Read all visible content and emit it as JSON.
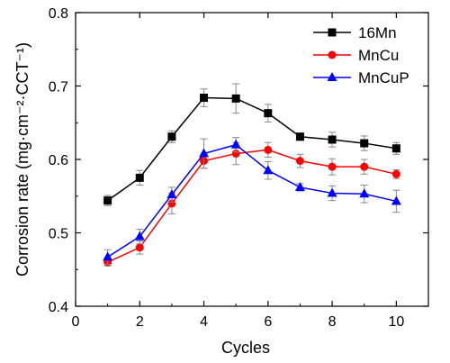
{
  "chart_data": {
    "type": "line",
    "xlabel": "Cycles",
    "ylabel": "Corrosion rate (mg·cm⁻²·CCT⁻¹)",
    "xlim": [
      0,
      11
    ],
    "ylim": [
      0.4,
      0.8
    ],
    "x_ticks": [
      0,
      2,
      4,
      6,
      8,
      10
    ],
    "y_ticks": [
      0.4,
      0.5,
      0.6,
      0.7,
      0.8
    ],
    "x_tick_labels": [
      "0",
      "2",
      "4",
      "6",
      "8",
      "10"
    ],
    "y_tick_labels": [
      "0.4",
      "0.5",
      "0.6",
      "0.7",
      "0.8"
    ],
    "grid": false,
    "legend_position": "top-right",
    "x": [
      1,
      2,
      3,
      4,
      5,
      6,
      7,
      8,
      9,
      10
    ],
    "series": [
      {
        "name": "16Mn",
        "color": "#000000",
        "marker": "square",
        "values": [
          0.544,
          0.575,
          0.631,
          0.684,
          0.683,
          0.663,
          0.631,
          0.627,
          0.622,
          0.615
        ],
        "errors": [
          0.007,
          0.01,
          0.008,
          0.012,
          0.02,
          0.012,
          0.005,
          0.01,
          0.01,
          0.008
        ]
      },
      {
        "name": "MnCu",
        "color": "#ff0000",
        "marker": "circle",
        "values": [
          0.46,
          0.48,
          0.54,
          0.598,
          0.608,
          0.613,
          0.598,
          0.59,
          0.59,
          0.58
        ],
        "errors": [
          0.005,
          0.009,
          0.014,
          0.01,
          0.015,
          0.01,
          0.009,
          0.011,
          0.01,
          0.006
        ]
      },
      {
        "name": "MnCuP",
        "color": "#0000ff",
        "marker": "triangle",
        "values": [
          0.467,
          0.495,
          0.552,
          0.608,
          0.62,
          0.585,
          0.562,
          0.554,
          0.553,
          0.543
        ],
        "errors": [
          0.01,
          0.01,
          0.01,
          0.02,
          0.01,
          0.012,
          0.005,
          0.01,
          0.012,
          0.015
        ]
      }
    ]
  }
}
